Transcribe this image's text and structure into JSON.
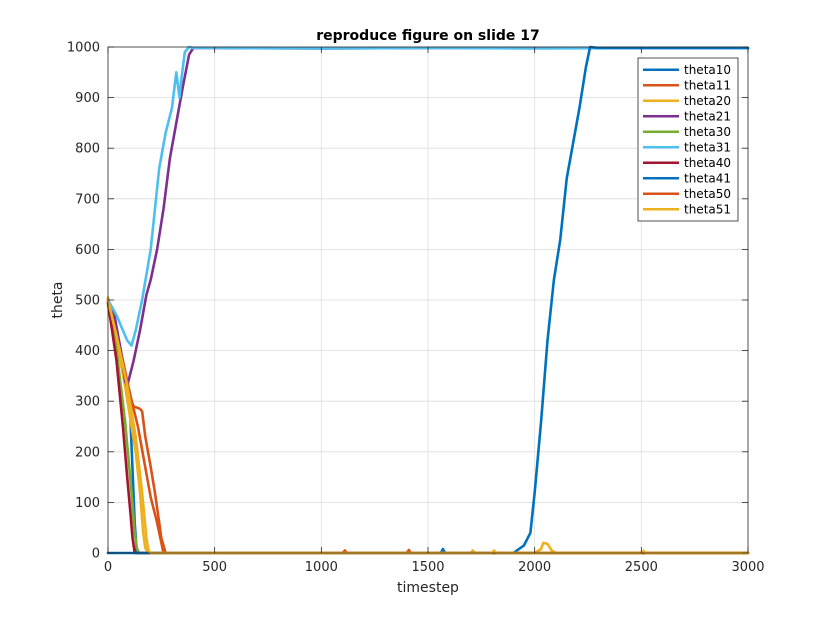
{
  "chart_data": {
    "type": "line",
    "title": "reproduce figure on slide 17",
    "xlabel": "timestep",
    "ylabel": "theta",
    "xlim": [
      0,
      3000
    ],
    "ylim": [
      0,
      1000
    ],
    "xticks": [
      0,
      500,
      1000,
      1500,
      2000,
      2500,
      3000
    ],
    "yticks": [
      0,
      100,
      200,
      300,
      400,
      500,
      600,
      700,
      800,
      900,
      1000
    ],
    "grid": true,
    "legend_position": "top-right",
    "series": [
      {
        "name": "theta10",
        "color": "#0072BD",
        "x": [
          0,
          40,
          70,
          100,
          125,
          135,
          150,
          200,
          500,
          1000,
          1560,
          1570,
          1580,
          3000
        ],
        "y": [
          500,
          430,
          360,
          320,
          60,
          0,
          0,
          0,
          0,
          0,
          0,
          8,
          0,
          0
        ]
      },
      {
        "name": "theta11",
        "color": "#D95319",
        "x": [
          0,
          50,
          90,
          110,
          120,
          150,
          160,
          175,
          200,
          220,
          240,
          250,
          270,
          1400,
          1410,
          1420,
          2000,
          3000
        ],
        "y": [
          495,
          420,
          340,
          300,
          290,
          285,
          280,
          230,
          170,
          120,
          60,
          30,
          0,
          0,
          6,
          0,
          0,
          0
        ]
      },
      {
        "name": "theta20",
        "color": "#EDB120",
        "x": [
          0,
          40,
          80,
          110,
          130,
          150,
          165,
          175,
          190,
          200,
          1700,
          1710,
          1720,
          2000,
          2030,
          2040,
          2060,
          2080,
          2100,
          3000
        ],
        "y": [
          505,
          420,
          330,
          250,
          200,
          120,
          40,
          10,
          0,
          0,
          0,
          5,
          0,
          0,
          8,
          20,
          18,
          5,
          0,
          0
        ]
      },
      {
        "name": "theta21",
        "color": "#7E2F8E",
        "x": [
          0,
          30,
          60,
          80,
          90,
          120,
          150,
          180,
          200,
          230,
          260,
          290,
          320,
          350,
          380,
          400,
          500,
          1000,
          1500,
          2000,
          2500,
          3000
        ],
        "y": [
          500,
          470,
          400,
          340,
          330,
          380,
          440,
          510,
          540,
          600,
          680,
          780,
          850,
          920,
          985,
          998,
          998,
          997,
          998,
          998,
          998,
          998
        ]
      },
      {
        "name": "theta30",
        "color": "#77AC30",
        "x": [
          0,
          40,
          80,
          110,
          125,
          135,
          145,
          200,
          3000
        ],
        "y": [
          490,
          400,
          260,
          120,
          40,
          10,
          0,
          0,
          0
        ]
      },
      {
        "name": "theta31",
        "color": "#4DBEEE",
        "x": [
          0,
          40,
          70,
          90,
          110,
          130,
          160,
          200,
          240,
          270,
          300,
          320,
          335,
          345,
          360,
          380,
          400,
          500,
          1000,
          1500,
          2000,
          2500,
          3000
        ],
        "y": [
          500,
          470,
          440,
          420,
          410,
          440,
          500,
          600,
          760,
          830,
          880,
          950,
          900,
          940,
          990,
          1000,
          998,
          998,
          997,
          998,
          997,
          998,
          998
        ]
      },
      {
        "name": "theta40",
        "color": "#A2142F",
        "x": [
          0,
          40,
          70,
          90,
          105,
          115,
          125,
          200,
          3000
        ],
        "y": [
          495,
          380,
          250,
          150,
          80,
          30,
          0,
          0,
          0
        ]
      },
      {
        "name": "theta41",
        "color": "#0072BD",
        "x": [
          0,
          1000,
          1500,
          1900,
          1950,
          1980,
          2000,
          2030,
          2060,
          2090,
          2120,
          2150,
          2180,
          2210,
          2240,
          2260,
          2300,
          2500,
          2800,
          3000
        ],
        "y": [
          0,
          0,
          0,
          0,
          15,
          40,
          120,
          260,
          420,
          540,
          620,
          740,
          810,
          880,
          960,
          1000,
          998,
          998,
          998,
          998
        ]
      },
      {
        "name": "theta50",
        "color": "#D95319",
        "x": [
          0,
          50,
          100,
          140,
          170,
          200,
          230,
          260,
          1100,
          1110,
          1120,
          3000
        ],
        "y": [
          500,
          410,
          320,
          250,
          180,
          110,
          60,
          0,
          0,
          5,
          0,
          0
        ]
      },
      {
        "name": "theta51",
        "color": "#EDB120",
        "x": [
          0,
          40,
          90,
          130,
          160,
          180,
          190,
          200,
          1800,
          1810,
          1820,
          2500,
          2510,
          2520,
          3000
        ],
        "y": [
          500,
          430,
          330,
          230,
          120,
          30,
          5,
          0,
          0,
          5,
          0,
          0,
          4,
          0,
          0
        ]
      }
    ]
  }
}
